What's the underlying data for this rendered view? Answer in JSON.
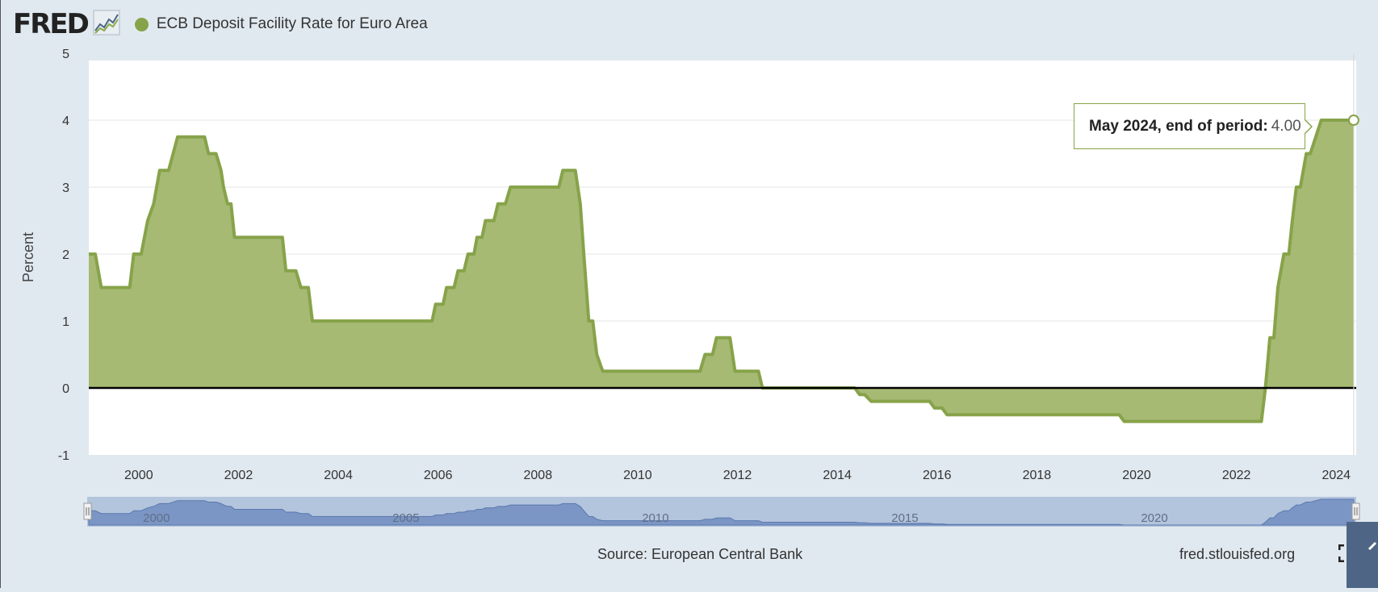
{
  "header": {
    "logo_text": "FRED",
    "logo_icon": "line-chart-icon",
    "series_label": "ECB Deposit Facility Rate for Euro Area",
    "series_color": "#87a34a"
  },
  "tooltip": {
    "label": "May 2024, end of period:",
    "value": "4.00"
  },
  "footer": {
    "source": "Source: European Central Bank",
    "site": "fred.stlouisfed.org",
    "fullscreen_icon": "fullscreen-icon"
  },
  "navigator": {
    "labels": [
      "2000",
      "2005",
      "2010",
      "2015",
      "2020"
    ]
  },
  "chart_data": {
    "type": "area",
    "ylabel": "Percent",
    "xlabel": "",
    "ylim": [
      -1,
      5
    ],
    "xlim": [
      1999.0,
      2024.4
    ],
    "yticks": [
      -1,
      0,
      1,
      2,
      3,
      4,
      5
    ],
    "xticks": [
      2000,
      2002,
      2004,
      2006,
      2008,
      2010,
      2012,
      2014,
      2016,
      2018,
      2020,
      2022,
      2024
    ],
    "grid": true,
    "fill_color": "#a6ba74",
    "line_color": "#87a34a",
    "series": [
      {
        "name": "ECB Deposit Facility Rate for Euro Area",
        "points": [
          [
            1999.0,
            2.0
          ],
          [
            1999.13,
            2.0
          ],
          [
            1999.25,
            1.5
          ],
          [
            1999.82,
            1.5
          ],
          [
            1999.9,
            2.0
          ],
          [
            2000.05,
            2.0
          ],
          [
            2000.18,
            2.5
          ],
          [
            2000.3,
            2.75
          ],
          [
            2000.42,
            3.25
          ],
          [
            2000.6,
            3.25
          ],
          [
            2000.78,
            3.75
          ],
          [
            2001.32,
            3.75
          ],
          [
            2001.4,
            3.5
          ],
          [
            2001.55,
            3.5
          ],
          [
            2001.65,
            3.25
          ],
          [
            2001.7,
            3.0
          ],
          [
            2001.78,
            2.75
          ],
          [
            2001.85,
            2.75
          ],
          [
            2001.92,
            2.25
          ],
          [
            2002.88,
            2.25
          ],
          [
            2002.95,
            1.75
          ],
          [
            2003.15,
            1.75
          ],
          [
            2003.25,
            1.5
          ],
          [
            2003.4,
            1.5
          ],
          [
            2003.48,
            1.0
          ],
          [
            2005.88,
            1.0
          ],
          [
            2005.95,
            1.25
          ],
          [
            2006.1,
            1.25
          ],
          [
            2006.17,
            1.5
          ],
          [
            2006.32,
            1.5
          ],
          [
            2006.4,
            1.75
          ],
          [
            2006.52,
            1.75
          ],
          [
            2006.6,
            2.0
          ],
          [
            2006.72,
            2.0
          ],
          [
            2006.78,
            2.25
          ],
          [
            2006.88,
            2.25
          ],
          [
            2006.95,
            2.5
          ],
          [
            2007.12,
            2.5
          ],
          [
            2007.2,
            2.75
          ],
          [
            2007.35,
            2.75
          ],
          [
            2007.45,
            3.0
          ],
          [
            2008.42,
            3.0
          ],
          [
            2008.5,
            3.25
          ],
          [
            2008.75,
            3.25
          ],
          [
            2008.85,
            2.75
          ],
          [
            2008.92,
            2.0
          ],
          [
            2009.02,
            1.0
          ],
          [
            2009.1,
            1.0
          ],
          [
            2009.18,
            0.5
          ],
          [
            2009.3,
            0.25
          ],
          [
            2011.25,
            0.25
          ],
          [
            2011.35,
            0.5
          ],
          [
            2011.5,
            0.5
          ],
          [
            2011.58,
            0.75
          ],
          [
            2011.85,
            0.75
          ],
          [
            2011.95,
            0.25
          ],
          [
            2012.42,
            0.25
          ],
          [
            2012.5,
            0.0
          ],
          [
            2014.35,
            0.0
          ],
          [
            2014.45,
            -0.1
          ],
          [
            2014.55,
            -0.1
          ],
          [
            2014.68,
            -0.2
          ],
          [
            2015.85,
            -0.2
          ],
          [
            2015.95,
            -0.3
          ],
          [
            2016.1,
            -0.3
          ],
          [
            2016.2,
            -0.4
          ],
          [
            2019.65,
            -0.4
          ],
          [
            2019.75,
            -0.5
          ],
          [
            2022.5,
            -0.5
          ],
          [
            2022.58,
            0.0
          ],
          [
            2022.67,
            0.75
          ],
          [
            2022.75,
            0.75
          ],
          [
            2022.83,
            1.5
          ],
          [
            2022.95,
            2.0
          ],
          [
            2023.05,
            2.0
          ],
          [
            2023.12,
            2.5
          ],
          [
            2023.2,
            3.0
          ],
          [
            2023.28,
            3.0
          ],
          [
            2023.4,
            3.5
          ],
          [
            2023.48,
            3.5
          ],
          [
            2023.7,
            4.0
          ],
          [
            2024.35,
            4.0
          ]
        ]
      }
    ]
  }
}
